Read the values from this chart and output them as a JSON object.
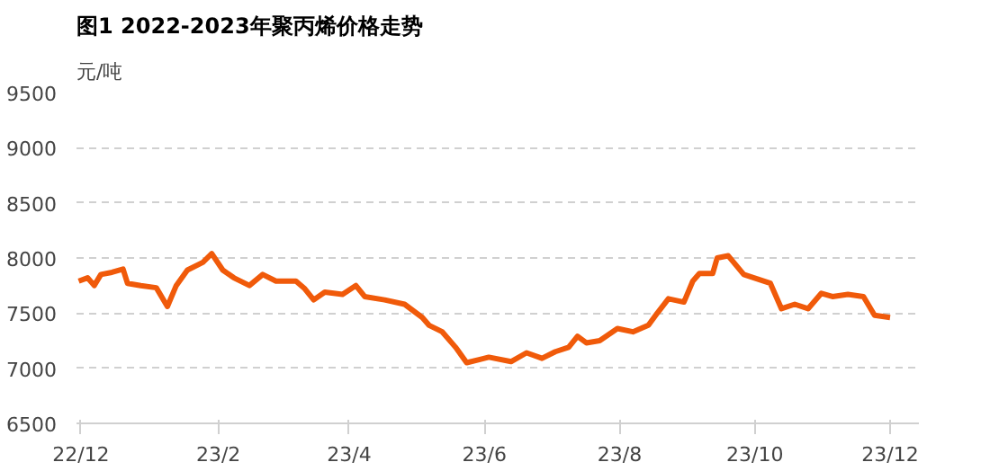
{
  "chart_data": {
    "type": "line",
    "title": "图1 2022-2023年聚丙烯价格走势",
    "ylabel": "元/吨",
    "x": [
      "2022-11-30",
      "2022-12-04",
      "2022-12-07",
      "2022-12-10",
      "2022-12-15",
      "2022-12-20",
      "2022-12-22",
      "2022-12-28",
      "2023-01-04",
      "2023-01-09",
      "2023-01-13",
      "2023-01-18",
      "2023-01-25",
      "2023-01-29",
      "2023-02-03",
      "2023-02-08",
      "2023-02-15",
      "2023-02-21",
      "2023-02-27",
      "2023-03-08",
      "2023-03-12",
      "2023-03-16",
      "2023-03-21",
      "2023-03-29",
      "2023-04-04",
      "2023-04-08",
      "2023-04-17",
      "2023-04-26",
      "2023-05-04",
      "2023-05-07",
      "2023-05-13",
      "2023-05-19",
      "2023-05-24",
      "2023-05-30",
      "2023-06-03",
      "2023-06-13",
      "2023-06-20",
      "2023-06-27",
      "2023-07-03",
      "2023-07-09",
      "2023-07-13",
      "2023-07-17",
      "2023-07-23",
      "2023-07-31",
      "2023-08-07",
      "2023-08-14",
      "2023-08-18",
      "2023-08-23",
      "2023-08-30",
      "2023-09-03",
      "2023-09-06",
      "2023-09-12",
      "2023-09-14",
      "2023-09-19",
      "2023-09-26",
      "2023-10-08",
      "2023-10-13",
      "2023-10-19",
      "2023-10-25",
      "2023-10-31",
      "2023-11-05",
      "2023-11-12",
      "2023-11-19",
      "2023-11-24",
      "2023-12-01"
    ],
    "series": [
      {
        "color": "#f05a0a",
        "values": [
          7790,
          7820,
          7750,
          7850,
          7870,
          7900,
          7770,
          7750,
          7730,
          7560,
          7750,
          7890,
          7960,
          8040,
          7890,
          7820,
          7750,
          7850,
          7790,
          7790,
          7720,
          7620,
          7690,
          7670,
          7750,
          7650,
          7620,
          7580,
          7460,
          7390,
          7330,
          7190,
          7050,
          7080,
          7100,
          7060,
          7140,
          7090,
          7150,
          7190,
          7290,
          7230,
          7250,
          7360,
          7330,
          7390,
          7500,
          7630,
          7600,
          7790,
          7860,
          7860,
          8000,
          8020,
          7850,
          7770,
          7540,
          7580,
          7540,
          7680,
          7650,
          7670,
          7650,
          7480,
          7460
        ]
      }
    ],
    "xlim": [
      "2022-11-29",
      "2023-12-14"
    ],
    "xticks": [
      {
        "value": "2022-12-01",
        "label": "22/12"
      },
      {
        "value": "2023-02-01",
        "label": "23/2"
      },
      {
        "value": "2023-04-01",
        "label": "23/4"
      },
      {
        "value": "2023-06-01",
        "label": "23/6"
      },
      {
        "value": "2023-08-01",
        "label": "23/8"
      },
      {
        "value": "2023-10-01",
        "label": "23/10"
      },
      {
        "value": "2023-12-01",
        "label": "23/12"
      }
    ],
    "ylim": [
      6500,
      9500
    ],
    "yticks": [
      6500,
      7000,
      7500,
      8000,
      8500,
      9000,
      9500
    ],
    "grid": "y",
    "marker": "none",
    "line_style": "solid"
  }
}
